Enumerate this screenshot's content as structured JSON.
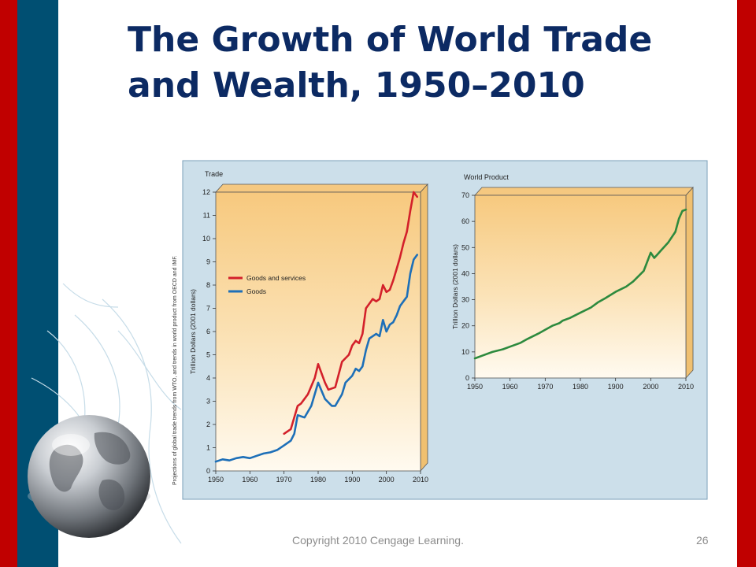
{
  "slide": {
    "title_line1": "The Growth of World Trade",
    "title_line2": "and Wealth, 1950–2010",
    "footer": "Copyright 2010 Cengage Learning.",
    "page_number": "26",
    "source_note": "Projections of global trade trends from WTO, and trends in world product from OECD and IMF.",
    "colors": {
      "accent_red": "#c00000",
      "accent_blue": "#004f72",
      "title": "#0c2a63"
    }
  },
  "chart_data": [
    {
      "type": "line",
      "title": "Trade",
      "ylabel": "Trillion Dollars (2001 dollars)",
      "xlim": [
        1950,
        2010
      ],
      "ylim": [
        0,
        12
      ],
      "x_ticks": [
        "1950",
        "1960",
        "1970",
        "1980",
        "1900",
        "2000",
        "2010"
      ],
      "y_ticks": [
        "0",
        "1",
        "2",
        "3",
        "4",
        "5",
        "6",
        "7",
        "8",
        "9",
        "10",
        "11",
        "12"
      ],
      "legend_position": "center-left",
      "series": [
        {
          "name": "Goods and services",
          "color": "#d3202a",
          "x": [
            1970,
            1972,
            1974,
            1975,
            1977,
            1979,
            1980,
            1982,
            1983,
            1985,
            1987,
            1989,
            1990,
            1991,
            1992,
            1993,
            1994,
            1995,
            1996,
            1997,
            1998,
            1999,
            2000,
            2001,
            2002,
            2003,
            2004,
            2005,
            2006,
            2007,
            2008,
            2009
          ],
          "values": [
            1.6,
            1.8,
            2.8,
            2.9,
            3.3,
            4.0,
            4.6,
            3.8,
            3.5,
            3.6,
            4.7,
            5.0,
            5.4,
            5.6,
            5.5,
            5.9,
            7.0,
            7.2,
            7.4,
            7.3,
            7.4,
            8.0,
            7.7,
            7.8,
            8.2,
            8.7,
            9.2,
            9.8,
            10.3,
            11.2,
            12.0,
            11.8
          ]
        },
        {
          "name": "Goods",
          "color": "#1d6fb8",
          "x": [
            1950,
            1952,
            1954,
            1956,
            1958,
            1960,
            1962,
            1964,
            1966,
            1968,
            1970,
            1972,
            1973,
            1974,
            1976,
            1978,
            1980,
            1982,
            1984,
            1985,
            1987,
            1988,
            1990,
            1991,
            1992,
            1993,
            1994,
            1995,
            1996,
            1997,
            1998,
            1999,
            2000,
            2001,
            2002,
            2003,
            2004,
            2005,
            2006,
            2007,
            2008,
            2009
          ],
          "values": [
            0.4,
            0.5,
            0.45,
            0.55,
            0.6,
            0.55,
            0.65,
            0.75,
            0.8,
            0.9,
            1.1,
            1.3,
            1.6,
            2.4,
            2.3,
            2.8,
            3.8,
            3.1,
            2.8,
            2.8,
            3.3,
            3.8,
            4.1,
            4.4,
            4.3,
            4.5,
            5.2,
            5.7,
            5.8,
            5.9,
            5.8,
            6.5,
            6.0,
            6.3,
            6.4,
            6.7,
            7.1,
            7.3,
            7.5,
            8.5,
            9.1,
            9.3
          ]
        }
      ]
    },
    {
      "type": "line",
      "title": "World Product",
      "ylabel": "Trillion Dollars (2001 dollars)",
      "xlim": [
        1950,
        2010
      ],
      "ylim": [
        0,
        70
      ],
      "x_ticks": [
        "1950",
        "1960",
        "1970",
        "1980",
        "1900",
        "2000",
        "2010"
      ],
      "y_ticks": [
        "0",
        "10",
        "20",
        "30",
        "40",
        "50",
        "60",
        "70"
      ],
      "series": [
        {
          "color": "#2d8a3e",
          "x": [
            1950,
            1952,
            1955,
            1958,
            1960,
            1963,
            1965,
            1968,
            1970,
            1972,
            1974,
            1975,
            1977,
            1980,
            1983,
            1985,
            1987,
            1990,
            1993,
            1995,
            1998,
            2000,
            2001,
            2002,
            2003,
            2005,
            2007,
            2008,
            2009,
            2010
          ],
          "values": [
            7.5,
            8.5,
            10,
            11,
            12,
            13.5,
            15,
            17,
            18.5,
            20,
            21,
            22,
            23,
            25,
            27,
            29,
            30.5,
            33,
            35,
            37,
            41,
            48,
            46,
            47.5,
            49,
            52,
            56,
            61,
            64,
            64.5
          ]
        }
      ]
    }
  ]
}
